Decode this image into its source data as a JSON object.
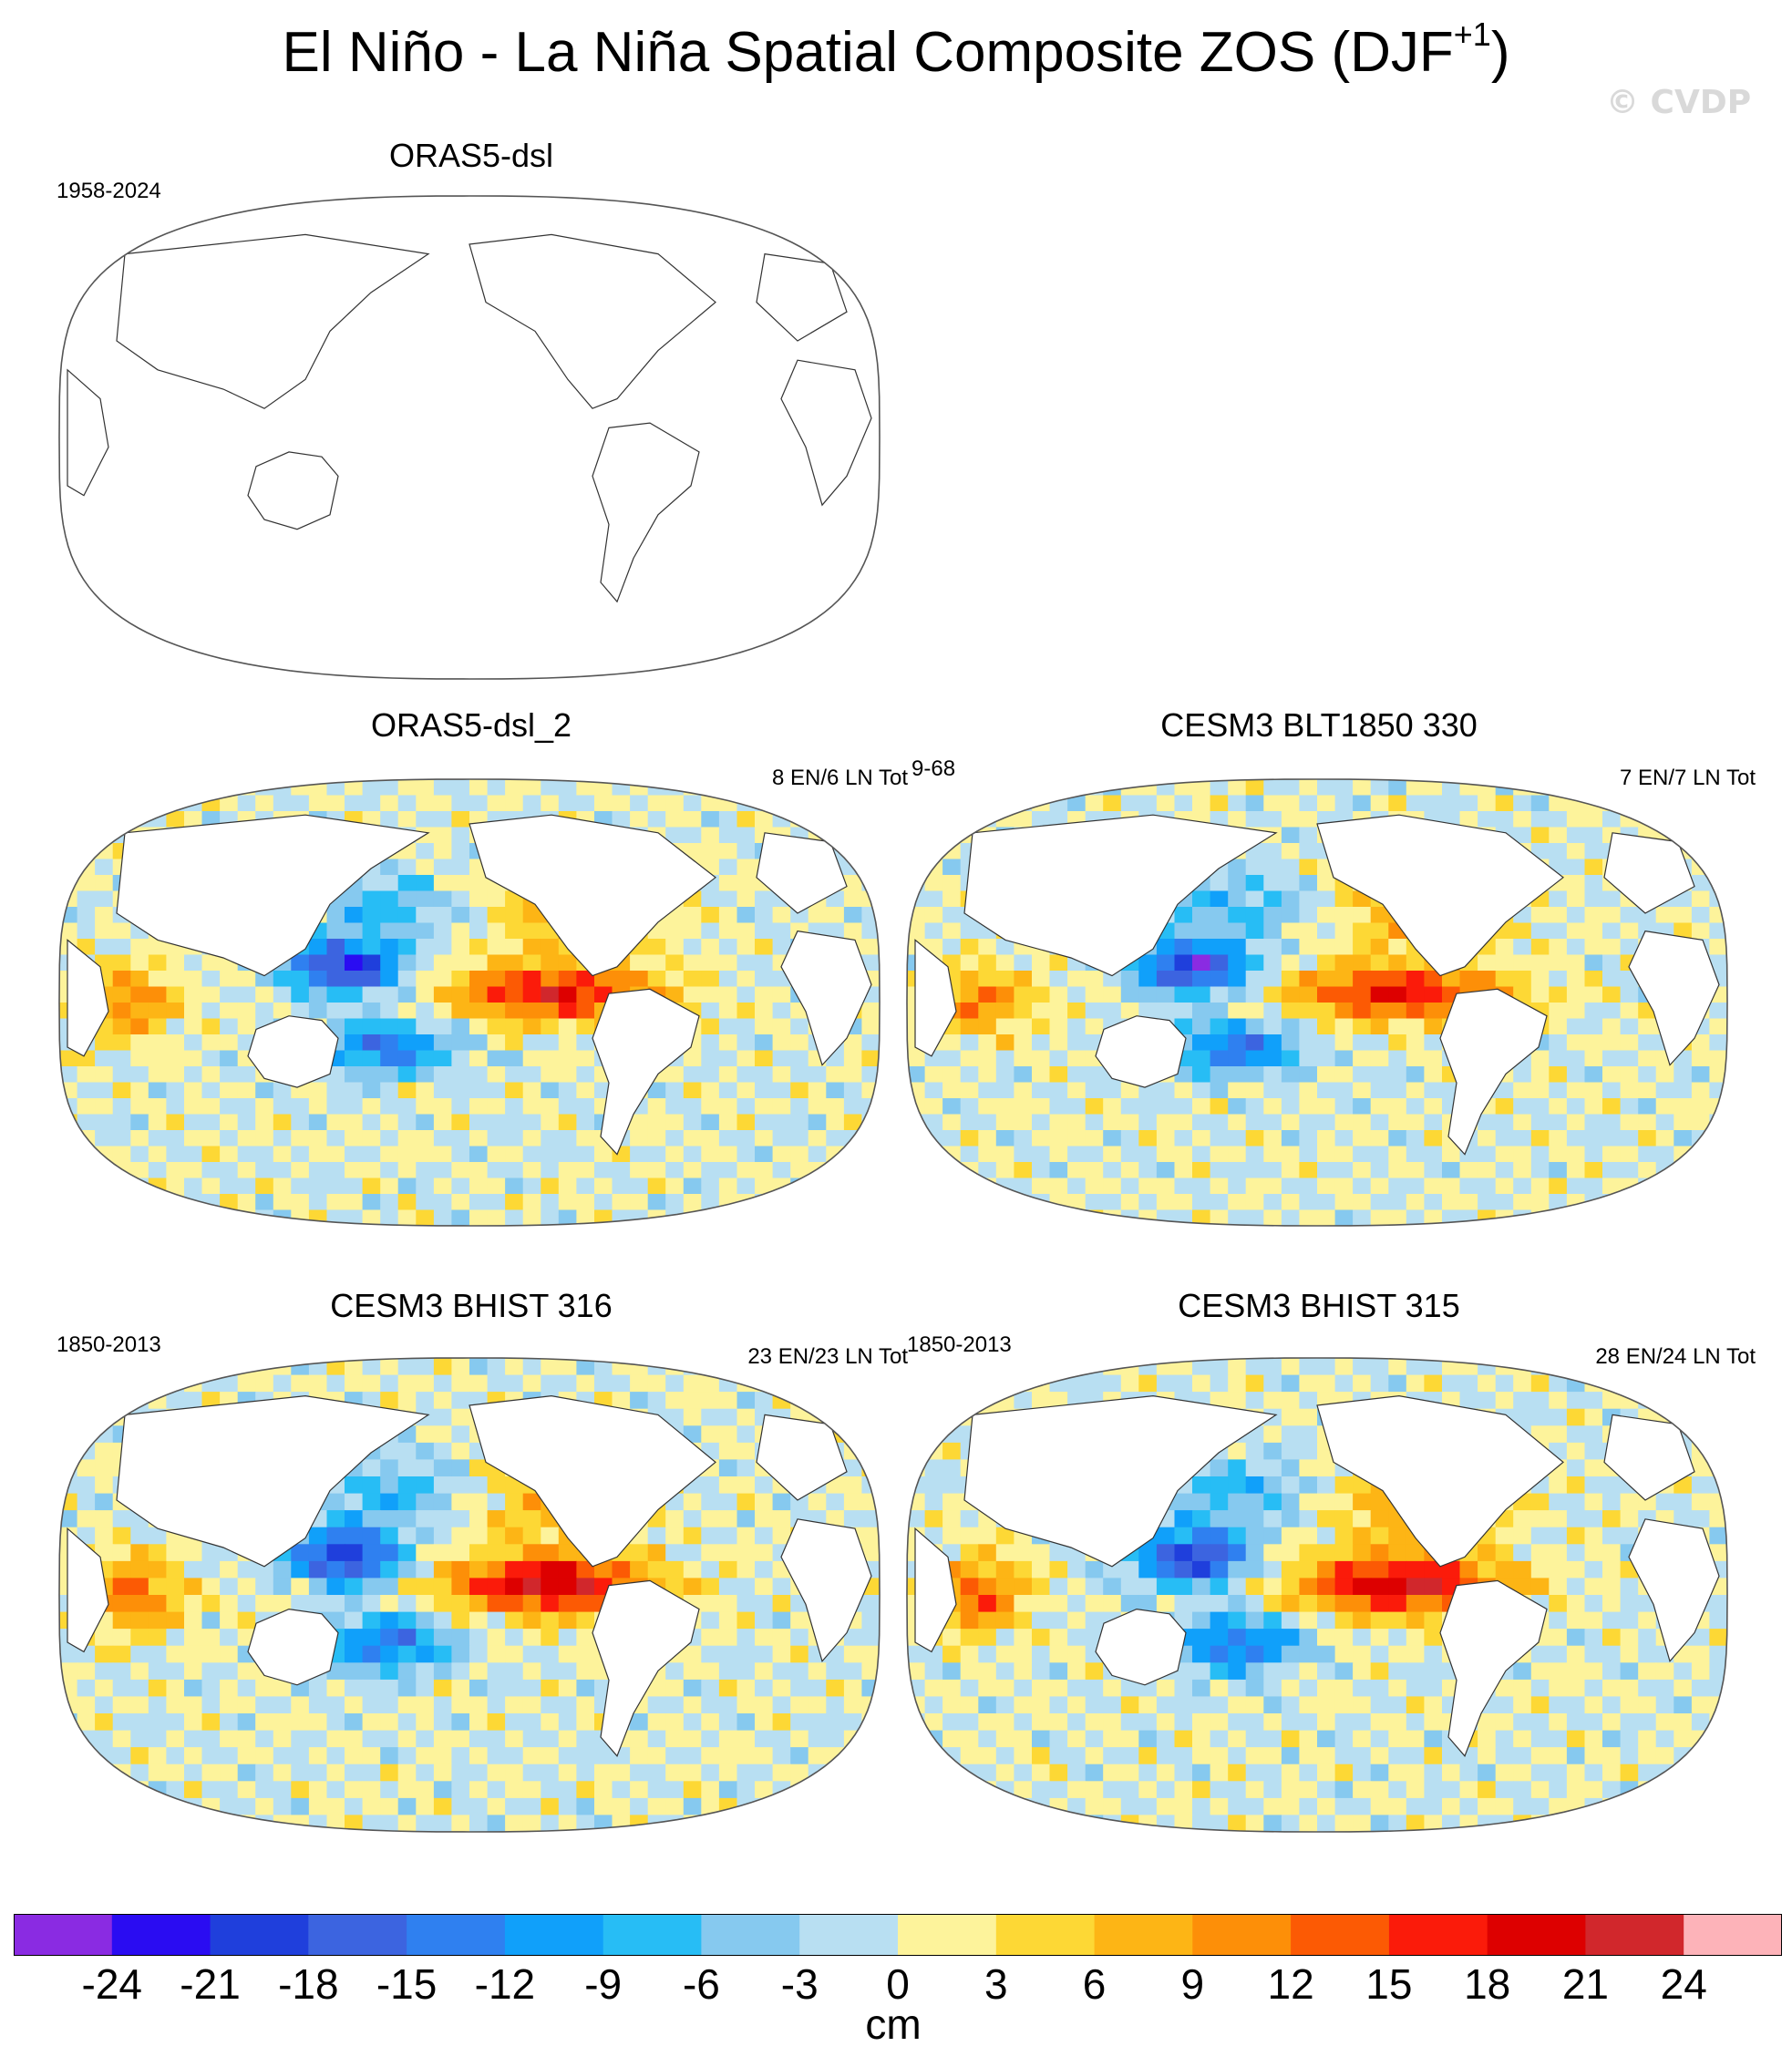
{
  "figure": {
    "title_main": "El Niño - La Niña Spatial Composite ZOS (DJF",
    "title_sup": "+1",
    "title_end": ")",
    "watermark": "© CVDP"
  },
  "chart_data": {
    "type": "heatmap",
    "projection": "Robinson, Pacific-centered",
    "variable": "ZOS",
    "season": "DJF+1",
    "units": "cm",
    "panels": [
      {
        "title": "ORAS5-dsl",
        "period": "1958-2024",
        "counts": "",
        "has_data": false
      },
      {
        "title": "ORAS5-dsl_2",
        "period": "",
        "counts": "8 EN/6 LN Tot",
        "overlap_text": "9-68",
        "has_data": true,
        "max_positive": 18,
        "max_negative": -21
      },
      {
        "title": "CESM3 BLT1850 330",
        "period": "",
        "counts": "7 EN/7 LN Tot",
        "has_data": true,
        "max_positive": 18,
        "max_negative": -21
      },
      {
        "title": "CESM3 BHIST 316",
        "period": "1850-2013",
        "counts": "23 EN/23 LN Tot",
        "has_data": true,
        "max_positive": 21,
        "max_negative": -21
      },
      {
        "title": "CESM3 BHIST 315",
        "period": "1850-2013",
        "counts": "28 EN/24 LN Tot",
        "has_data": true,
        "max_positive": 21,
        "max_negative": -21
      }
    ],
    "colorbar": {
      "levels": [
        -24,
        -21,
        -18,
        -15,
        -12,
        -9,
        -6,
        -3,
        0,
        3,
        6,
        9,
        12,
        15,
        18,
        21,
        24
      ],
      "labels": [
        "-24",
        "-21",
        "-18",
        "-15",
        "-12",
        "-9",
        "-6",
        "-3",
        "0",
        "3",
        "6",
        "9",
        "12",
        "15",
        "18",
        "21",
        "24"
      ],
      "colors": [
        "#8a2be2",
        "#2a0cf2",
        "#1f3fdc",
        "#3c64e0",
        "#2f80f0",
        "#10a0fa",
        "#27bdf5",
        "#86c9ef",
        "#b8dff2",
        "#fdf39b",
        "#fdd835",
        "#fdb515",
        "#fd8f08",
        "#fc5a04",
        "#fb1b0a",
        "#dd0000",
        "#d1272c",
        "#fdb3b9"
      ],
      "units_label": "cm"
    }
  }
}
